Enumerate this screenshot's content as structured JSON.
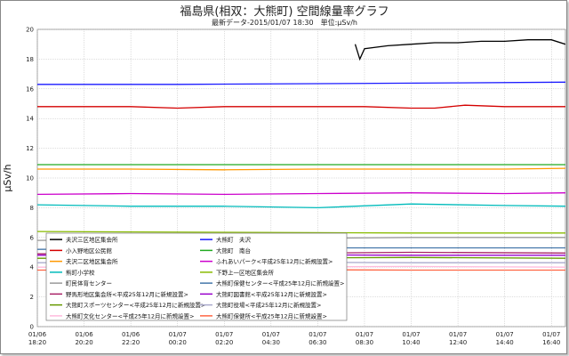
{
  "chart_data": {
    "type": "line",
    "title": "福島県(相双：大熊町) 空間線量率グラフ",
    "subtitle": "最新データ-2015/01/07 18:30　単位:μSv/h",
    "ylabel": "μSv/h",
    "ylim": [
      0,
      20
    ],
    "yticks": [
      0,
      2,
      4,
      6,
      8,
      10,
      12,
      14,
      16,
      18,
      20
    ],
    "xlim": [
      0,
      22.6
    ],
    "xticks": [
      {
        "x": 0,
        "line1": "01/06",
        "line2": "18:20"
      },
      {
        "x": 2,
        "line1": "01/06",
        "line2": "20:20"
      },
      {
        "x": 4,
        "line1": "01/06",
        "line2": "22:20"
      },
      {
        "x": 6,
        "line1": "01/07",
        "line2": "00:20"
      },
      {
        "x": 8,
        "line1": "01/07",
        "line2": "02:20"
      },
      {
        "x": 10,
        "line1": "01/07",
        "line2": "04:30"
      },
      {
        "x": 12,
        "line1": "01/07",
        "line2": "06:30"
      },
      {
        "x": 14,
        "line1": "01/07",
        "line2": "08:30"
      },
      {
        "x": 16,
        "line1": "01/07",
        "line2": "10:40"
      },
      {
        "x": 18,
        "line1": "01/07",
        "line2": "12:40"
      },
      {
        "x": 20,
        "line1": "01/07",
        "line2": "14:40"
      },
      {
        "x": 22,
        "line1": "01/07",
        "line2": "16:40"
      }
    ],
    "grid": true,
    "legend_position": "bottom-left",
    "series": [
      {
        "name": "夫沢三区地区集会所",
        "color": "#000000",
        "points": [
          [
            13.6,
            19.0
          ],
          [
            13.8,
            18.0
          ],
          [
            14.0,
            18.7
          ],
          [
            15,
            18.9
          ],
          [
            16,
            19.0
          ],
          [
            17,
            19.1
          ],
          [
            18,
            19.1
          ],
          [
            19,
            19.2
          ],
          [
            20,
            19.2
          ],
          [
            21,
            19.3
          ],
          [
            22,
            19.3
          ],
          [
            22.6,
            19.0
          ]
        ]
      },
      {
        "name": "大熊町　夫沢",
        "color": "#1a1aff",
        "points": [
          [
            0,
            16.3
          ],
          [
            6,
            16.3
          ],
          [
            12,
            16.35
          ],
          [
            18,
            16.4
          ],
          [
            22.6,
            16.45
          ]
        ]
      },
      {
        "name": "小入野地区公民館",
        "color": "#d40000",
        "points": [
          [
            0,
            14.8
          ],
          [
            2,
            14.8
          ],
          [
            4,
            14.8
          ],
          [
            6,
            14.7
          ],
          [
            8,
            14.8
          ],
          [
            10,
            14.8
          ],
          [
            12,
            14.8
          ],
          [
            14,
            14.8
          ],
          [
            16,
            14.7
          ],
          [
            17,
            14.7
          ],
          [
            18.3,
            14.9
          ],
          [
            20,
            14.8
          ],
          [
            22.6,
            14.8
          ]
        ]
      },
      {
        "name": "大熊町　南台",
        "color": "#22aa22",
        "points": [
          [
            0,
            10.9
          ],
          [
            6,
            10.9
          ],
          [
            12,
            10.9
          ],
          [
            18,
            10.9
          ],
          [
            22.6,
            10.9
          ]
        ]
      },
      {
        "name": "夫沢二区地区集会所",
        "color": "#ff9900",
        "points": [
          [
            0,
            10.6
          ],
          [
            4,
            10.6
          ],
          [
            8,
            10.55
          ],
          [
            12,
            10.6
          ],
          [
            16,
            10.6
          ],
          [
            20,
            10.6
          ],
          [
            22.6,
            10.65
          ]
        ]
      },
      {
        "name": "ふれあいパーク<平成25年12月に新規設置>",
        "color": "#cc00cc",
        "points": [
          [
            0,
            8.9
          ],
          [
            4,
            8.95
          ],
          [
            8,
            8.9
          ],
          [
            12,
            8.95
          ],
          [
            16,
            9.0
          ],
          [
            20,
            8.95
          ],
          [
            22.6,
            9.0
          ]
        ]
      },
      {
        "name": "熊町小学校",
        "color": "#00bbbb",
        "points": [
          [
            0,
            8.2
          ],
          [
            4,
            8.1
          ],
          [
            8,
            8.1
          ],
          [
            12,
            8.0
          ],
          [
            16,
            8.25
          ],
          [
            20,
            8.15
          ],
          [
            22.6,
            8.1
          ]
        ]
      },
      {
        "name": "下野上一区地区集会所",
        "color": "#88bb00",
        "points": [
          [
            0,
            6.4
          ],
          [
            8,
            6.35
          ],
          [
            16,
            6.3
          ],
          [
            22.6,
            6.3
          ]
        ]
      },
      {
        "name": "町民体育センター",
        "color": "#999999",
        "points": [
          [
            0,
            5.8
          ],
          [
            8,
            5.9
          ],
          [
            16,
            6.0
          ],
          [
            22.6,
            6.0
          ]
        ]
      },
      {
        "name": "大熊町保健センター<平成25年12月に新規設置>",
        "color": "#4477aa",
        "points": [
          [
            0,
            5.2
          ],
          [
            8,
            5.3
          ],
          [
            16,
            5.3
          ],
          [
            22.6,
            5.3
          ]
        ]
      },
      {
        "name": "野馬形地区集会所<平成25年12月に新規設置>",
        "color": "#aa2266",
        "points": [
          [
            0,
            4.9
          ],
          [
            8,
            4.9
          ],
          [
            16,
            5.0
          ],
          [
            22.6,
            4.95
          ]
        ]
      },
      {
        "name": "大熊町図書館<平成25年12月に新規設置>",
        "color": "#9900cc",
        "points": [
          [
            0,
            4.8
          ],
          [
            8,
            4.85
          ],
          [
            16,
            4.8
          ],
          [
            22.6,
            4.8
          ]
        ]
      },
      {
        "name": "大熊町スポーツセンター<平成25年12月に新規設置>",
        "color": "#669900",
        "points": [
          [
            0,
            4.6
          ],
          [
            8,
            4.6
          ],
          [
            16,
            4.65
          ],
          [
            22.6,
            4.6
          ]
        ]
      },
      {
        "name": "大熊町役場<平成25年12月に新規設置>",
        "color": "#aaaacc",
        "points": [
          [
            0,
            4.3
          ],
          [
            8,
            4.35
          ],
          [
            16,
            4.3
          ],
          [
            22.6,
            4.3
          ]
        ]
      },
      {
        "name": "大熊町文化センター<平成25年12月に新規設置>",
        "color": "#ffbbdd",
        "points": [
          [
            0,
            4.0
          ],
          [
            8,
            4.0
          ],
          [
            16,
            4.05
          ],
          [
            22.6,
            4.0
          ]
        ]
      },
      {
        "name": "大熊町保健所<平成25年12月に新規設置>",
        "color": "#ff6644",
        "points": [
          [
            0,
            3.8
          ],
          [
            8,
            3.85
          ],
          [
            16,
            3.8
          ],
          [
            22.6,
            3.8
          ]
        ]
      }
    ]
  }
}
